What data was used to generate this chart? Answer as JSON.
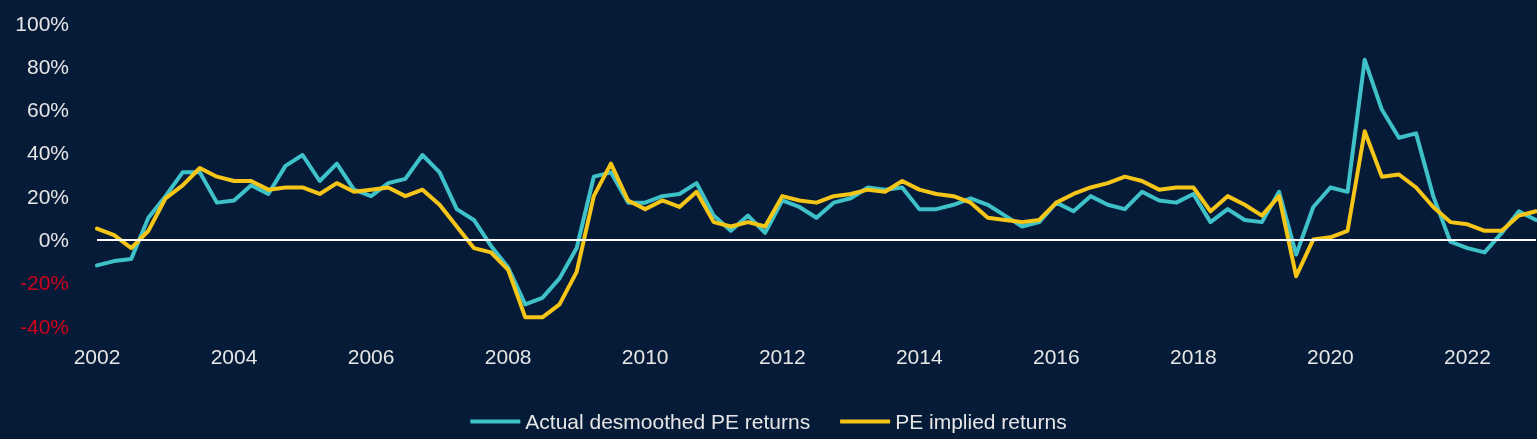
{
  "chart_data": {
    "type": "line",
    "x": [
      2002,
      2002.25,
      2002.5,
      2002.75,
      2003,
      2003.25,
      2003.5,
      2003.75,
      2004,
      2004.25,
      2004.5,
      2004.75,
      2005,
      2005.25,
      2005.5,
      2005.75,
      2006,
      2006.25,
      2006.5,
      2006.75,
      2007,
      2007.25,
      2007.5,
      2007.75,
      2008,
      2008.25,
      2008.5,
      2008.75,
      2009,
      2009.25,
      2009.5,
      2009.75,
      2010,
      2010.25,
      2010.5,
      2010.75,
      2011,
      2011.25,
      2011.5,
      2011.75,
      2012,
      2012.25,
      2012.5,
      2012.75,
      2013,
      2013.25,
      2013.5,
      2013.75,
      2014,
      2014.25,
      2014.5,
      2014.75,
      2015,
      2015.25,
      2015.5,
      2015.75,
      2016,
      2016.25,
      2016.5,
      2016.75,
      2017,
      2017.25,
      2017.5,
      2017.75,
      2018,
      2018.25,
      2018.5,
      2018.75,
      2019,
      2019.25,
      2019.5,
      2019.75,
      2020,
      2020.25,
      2020.5,
      2020.75,
      2021,
      2021.25,
      2021.5,
      2021.75,
      2022,
      2022.25,
      2022.5,
      2022.75,
      2023
    ],
    "series": [
      {
        "name": "Actual desmoothed PE returns",
        "color": "#3fc1c9",
        "values": [
          -12,
          -10,
          -9,
          10,
          20,
          31,
          31,
          17,
          18,
          25,
          21,
          34,
          39,
          27,
          35,
          23,
          20,
          26,
          28,
          39,
          31,
          14,
          9,
          -3,
          -13,
          -30,
          -27,
          -18,
          -4,
          29,
          31,
          17,
          17,
          20,
          21,
          26,
          11,
          4,
          11,
          3,
          18,
          15,
          10,
          17,
          19,
          24,
          23,
          24,
          14,
          14,
          16,
          19,
          16,
          11,
          6,
          8,
          17,
          13,
          20,
          16,
          14,
          22,
          18,
          17,
          21,
          8,
          14,
          9,
          8,
          22,
          -7,
          15,
          24,
          22,
          83,
          60,
          47,
          49,
          20,
          -1,
          -4,
          -6,
          3,
          13,
          9
        ]
      },
      {
        "name": "PE implied returns",
        "color": "#f5c518",
        "values": [
          5,
          2,
          -4,
          4,
          19,
          25,
          33,
          29,
          27,
          27,
          23,
          24,
          24,
          21,
          26,
          22,
          23,
          24,
          20,
          23,
          16,
          6,
          -4,
          -6,
          -14,
          -36,
          -36,
          -30,
          -15,
          20,
          35,
          18,
          14,
          18,
          15,
          22,
          8,
          6,
          8,
          6,
          20,
          18,
          17,
          20,
          21,
          23,
          22,
          27,
          23,
          21,
          20,
          17,
          10,
          9,
          8,
          9,
          17,
          21,
          24,
          26,
          29,
          27,
          23,
          24,
          24,
          13,
          20,
          16,
          11,
          20,
          -17,
          0,
          1,
          4,
          50,
          29,
          30,
          24,
          15,
          8,
          7,
          4,
          4,
          11,
          13
        ]
      }
    ],
    "xlim": [
      2002,
      2023
    ],
    "xticks": [
      2002,
      2004,
      2006,
      2008,
      2010,
      2012,
      2014,
      2016,
      2018,
      2020,
      2022
    ],
    "ylim": [
      -40,
      100
    ],
    "yticks": [
      {
        "value": -40,
        "label": "-40%"
      },
      {
        "value": -20,
        "label": "-20%"
      },
      {
        "value": 0,
        "label": "0%"
      },
      {
        "value": 20,
        "label": "20%"
      },
      {
        "value": 40,
        "label": "40%"
      },
      {
        "value": 60,
        "label": "60%"
      },
      {
        "value": 80,
        "label": "80%"
      },
      {
        "value": 100,
        "label": "100%"
      }
    ],
    "ref_lines": [
      {
        "axis": "y",
        "value": 0,
        "color": "#ffffff"
      }
    ],
    "legend": "bottom",
    "marker": "none",
    "line_style": "solid"
  }
}
